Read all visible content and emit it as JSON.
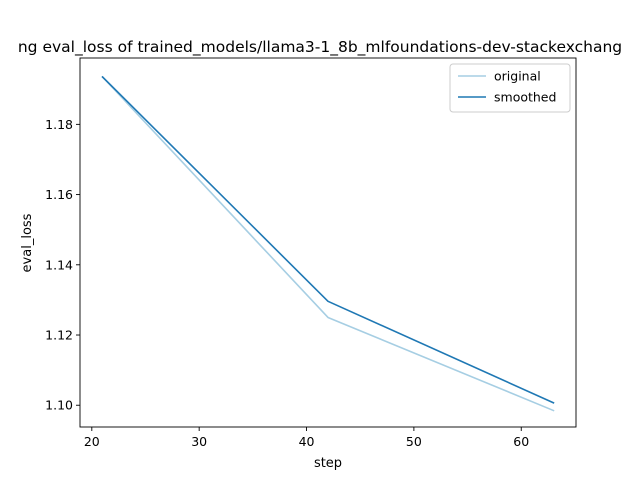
{
  "chart_data": {
    "type": "line",
    "title": "ng eval_loss of trained_models/llama3-1_8b_mlfoundations-dev-stackexchang",
    "xlabel": "step",
    "ylabel": "eval_loss",
    "xlim": [
      18.9,
      65.1
    ],
    "ylim": [
      1.0938,
      1.1989
    ],
    "xticks": [
      20,
      30,
      40,
      50,
      60
    ],
    "yticks": [
      1.1,
      1.12,
      1.14,
      1.16,
      1.18
    ],
    "xtick_labels": [
      "20",
      "30",
      "40",
      "50",
      "60"
    ],
    "ytick_labels": [
      "1.10",
      "1.12",
      "1.14",
      "1.16",
      "1.18"
    ],
    "grid": false,
    "legend_position": "upper right",
    "series": [
      {
        "name": "original",
        "color": "#a6cee3",
        "x": [
          21,
          42,
          63
        ],
        "y": [
          1.1935,
          1.125,
          1.0985
        ]
      },
      {
        "name": "smoothed",
        "color": "#1f78b4",
        "x": [
          21,
          42,
          63
        ],
        "y": [
          1.1935,
          1.1296,
          1.1007
        ]
      }
    ]
  }
}
